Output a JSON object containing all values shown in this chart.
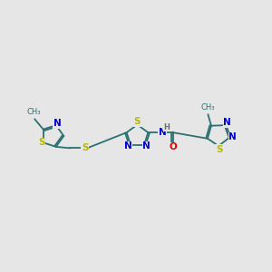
{
  "bg_color": "#e6e6e6",
  "bond_color": "#2d7070",
  "bond_lw": 1.3,
  "S_color": "#b8b800",
  "N_color": "#0000cc",
  "O_color": "#dd0000",
  "H_color": "#707070",
  "font_size": 7.5,
  "ring_r": 0.42,
  "xlim": [
    0,
    10
  ],
  "ylim": [
    2,
    8
  ],
  "figsize": [
    3.0,
    3.0
  ],
  "dpi": 100
}
